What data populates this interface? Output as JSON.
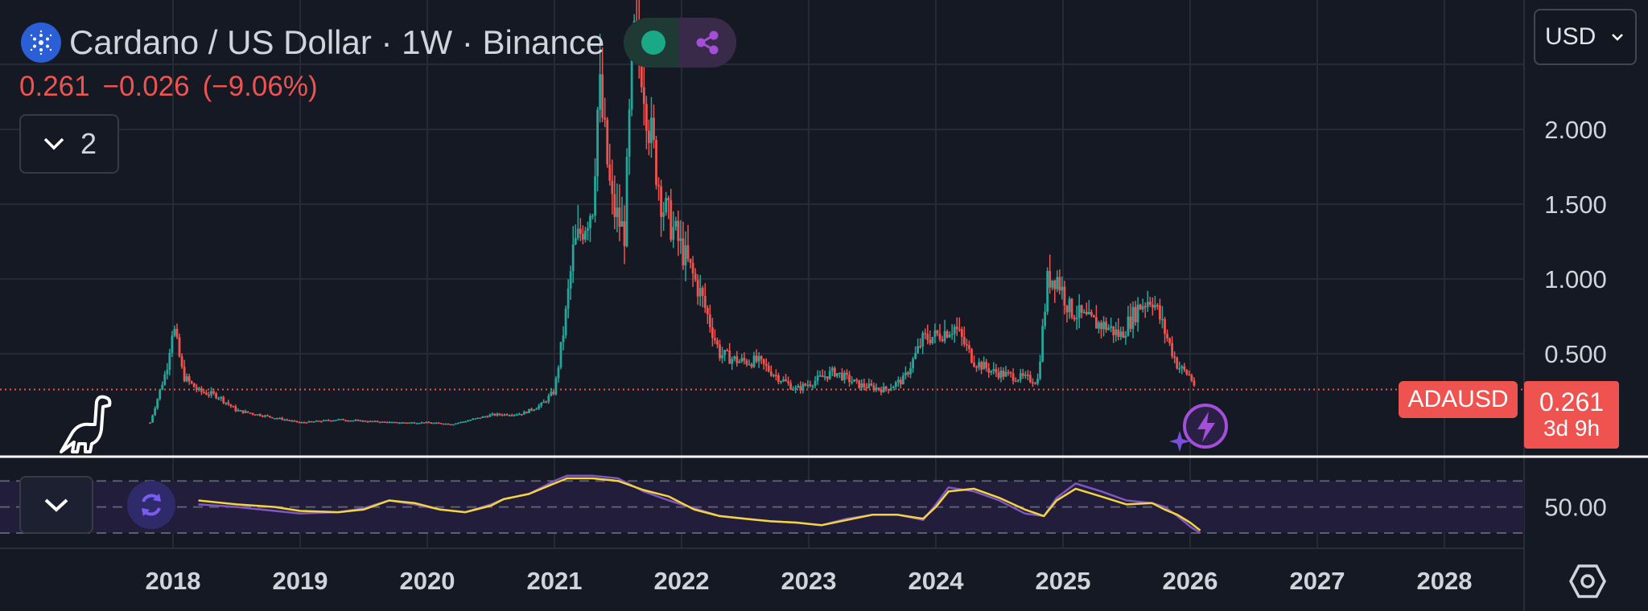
{
  "header": {
    "title": "Cardano / US Dollar · 1W · Binance",
    "price": "0.261",
    "change": "−0.026",
    "change_pct": "(−9.06%)",
    "indicator_count": "2"
  },
  "currency_selector": {
    "value": "USD"
  },
  "price_label": {
    "symbol": "ADAUSD",
    "price": "0.261",
    "countdown": "3d 9h"
  },
  "colors": {
    "up": "#26a69a",
    "down": "#ef5350",
    "rsi": "#7e57c2",
    "rsi_ma": "#f5d53d",
    "bg": "#151924"
  },
  "icons": [
    "cardano-logo-icon",
    "status-dot-icon",
    "share-icon",
    "chevron-down-icon",
    "dino-icon",
    "tradingview-logo-icon",
    "refresh-icon",
    "lightning-icon",
    "settings-hexagon-icon"
  ],
  "chart_data": {
    "type": "line",
    "title": "Cardano / US Dollar · 1W · Binance",
    "x_ticks": [
      "2018",
      "2019",
      "2020",
      "2021",
      "2022",
      "2023",
      "2024",
      "2025",
      "2026",
      "2027",
      "2028"
    ],
    "y_ticks": [
      "0.500",
      "1.000",
      "1.500",
      "2.000"
    ],
    "ylim": [
      0.0,
      3.0
    ],
    "last_price": 0.261,
    "series": [
      {
        "name": "",
        "x": [
          2017.82,
          2017.95,
          2018.0,
          2018.08,
          2018.2,
          2018.35,
          2018.5,
          2018.75,
          2019.0,
          2019.3,
          2019.5,
          2019.75,
          2020.0,
          2020.2,
          2020.5,
          2020.75,
          2020.9,
          2021.0,
          2021.08,
          2021.15,
          2021.3,
          2021.35,
          2021.45,
          2021.55,
          2021.62,
          2021.68,
          2021.75,
          2021.85,
          2021.95,
          2022.05,
          2022.15,
          2022.3,
          2022.45,
          2022.6,
          2022.75,
          2022.9,
          2023.0,
          2023.2,
          2023.4,
          2023.6,
          2023.75,
          2023.9,
          2024.0,
          2024.15,
          2024.3,
          2024.45,
          2024.6,
          2024.8,
          2024.88,
          2024.95,
          2025.05,
          2025.2,
          2025.35,
          2025.45,
          2025.6,
          2025.7,
          2025.8,
          2025.9,
          2026.0,
          2026.05
        ],
        "values": [
          0.04,
          0.4,
          0.7,
          0.35,
          0.25,
          0.22,
          0.12,
          0.08,
          0.04,
          0.06,
          0.05,
          0.04,
          0.04,
          0.03,
          0.09,
          0.1,
          0.16,
          0.25,
          0.7,
          1.2,
          1.5,
          2.3,
          1.5,
          1.3,
          2.6,
          2.5,
          2.0,
          1.5,
          1.3,
          1.1,
          0.9,
          0.5,
          0.45,
          0.45,
          0.35,
          0.26,
          0.3,
          0.38,
          0.29,
          0.26,
          0.33,
          0.6,
          0.62,
          0.68,
          0.45,
          0.38,
          0.35,
          0.32,
          1.0,
          1.02,
          0.8,
          0.72,
          0.68,
          0.62,
          0.82,
          0.88,
          0.65,
          0.42,
          0.35,
          0.261
        ]
      },
      {
        "name": "",
        "x": [
          2018.2,
          2018.5,
          2018.8,
          2019.0,
          2019.3,
          2019.5,
          2019.7,
          2019.9,
          2020.1,
          2020.3,
          2020.5,
          2020.6,
          2020.8,
          2021.0,
          2021.1,
          2021.3,
          2021.5,
          2021.7,
          2021.9,
          2022.1,
          2022.3,
          2022.5,
          2022.7,
          2022.9,
          2023.1,
          2023.3,
          2023.5,
          2023.7,
          2023.9,
          2024.0,
          2024.1,
          2024.3,
          2024.5,
          2024.7,
          2024.85,
          2024.95,
          2025.1,
          2025.3,
          2025.5,
          2025.7,
          2025.8,
          2025.9,
          2026.0,
          2026.08
        ],
        "values": [
          52,
          50,
          47,
          45,
          46,
          49,
          55,
          52,
          48,
          46,
          52,
          56,
          60,
          70,
          74,
          74,
          72,
          62,
          55,
          49,
          43,
          41,
          39,
          38,
          36,
          41,
          44,
          44,
          40,
          52,
          65,
          62,
          55,
          45,
          43,
          57,
          68,
          62,
          55,
          53,
          50,
          43,
          35,
          30
        ]
      },
      {
        "name": "",
        "x": [
          2018.2,
          2018.5,
          2018.8,
          2019.0,
          2019.3,
          2019.5,
          2019.7,
          2019.9,
          2020.1,
          2020.3,
          2020.5,
          2020.6,
          2020.8,
          2021.0,
          2021.1,
          2021.3,
          2021.5,
          2021.7,
          2021.9,
          2022.1,
          2022.3,
          2022.5,
          2022.7,
          2022.9,
          2023.1,
          2023.3,
          2023.5,
          2023.7,
          2023.9,
          2024.0,
          2024.1,
          2024.3,
          2024.5,
          2024.7,
          2024.85,
          2024.95,
          2025.1,
          2025.3,
          2025.5,
          2025.7,
          2025.8,
          2025.9,
          2026.0,
          2026.08
        ],
        "values": [
          55,
          52,
          50,
          47,
          46,
          48,
          55,
          53,
          48,
          46,
          51,
          56,
          60,
          68,
          72,
          72,
          70,
          63,
          58,
          48,
          43,
          41,
          39,
          38,
          36,
          40,
          44,
          44,
          41,
          50,
          62,
          64,
          57,
          48,
          43,
          55,
          64,
          58,
          52,
          53,
          48,
          44,
          38,
          32
        ]
      }
    ],
    "rsi_ylim": [
      30,
      80
    ],
    "rsi_tick": "50.00",
    "grid": true
  }
}
